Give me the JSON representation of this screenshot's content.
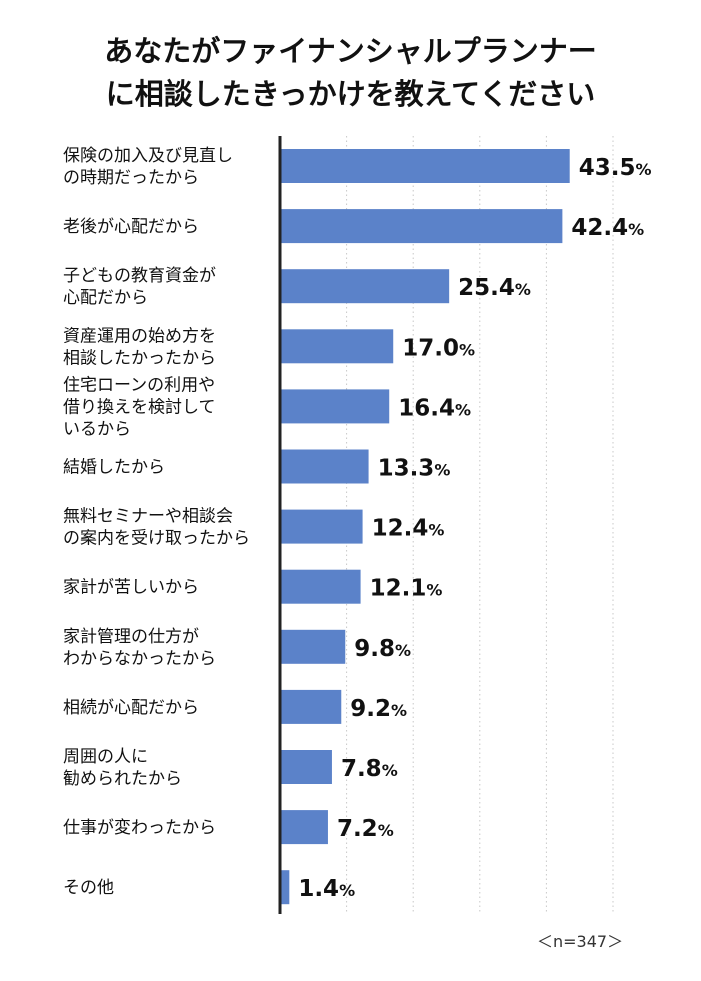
{
  "title_lines": [
    "あなたがファイナンシャルプランナー",
    "に相談したきっかけを教えてください"
  ],
  "sample_note": "＜n=347＞",
  "colors": {
    "bar": "#5b82c9",
    "axis": "#222222",
    "grid": "#c8c8c8",
    "text": "#111111"
  },
  "chart_data": {
    "type": "bar",
    "orientation": "horizontal",
    "title": "あなたがファイナンシャルプランナーに相談したきっかけを教えてください",
    "xlim": [
      0,
      50
    ],
    "grid": "vertical dotted",
    "value_suffix": "%",
    "categories": [
      [
        "保険の加入及び見直し",
        "の時期だったから"
      ],
      [
        "老後が心配だから"
      ],
      [
        "子どもの教育資金が",
        "心配だから"
      ],
      [
        "資産運用の始め方を",
        "相談したかったから"
      ],
      [
        "住宅ローンの利用や",
        "借り換えを検討して",
        "いるから"
      ],
      [
        "結婚したから"
      ],
      [
        "無料セミナーや相談会",
        "の案内を受け取ったから"
      ],
      [
        "家計が苦しいから"
      ],
      [
        "家計管理の仕方が",
        "わからなかったから"
      ],
      [
        "相続が心配だから"
      ],
      [
        "周囲の人に",
        "勧められたから"
      ],
      [
        "仕事が変わったから"
      ],
      [
        "その他"
      ]
    ],
    "values": [
      43.5,
      42.4,
      25.4,
      17.0,
      16.4,
      13.3,
      12.4,
      12.1,
      9.8,
      9.2,
      7.8,
      7.2,
      1.4
    ],
    "value_labels": [
      "43.5",
      "42.4",
      "25.4",
      "17.0",
      "16.4",
      "13.3",
      "12.4",
      "12.1",
      "9.8",
      "9.2",
      "7.8",
      "7.2",
      "1.4"
    ]
  }
}
